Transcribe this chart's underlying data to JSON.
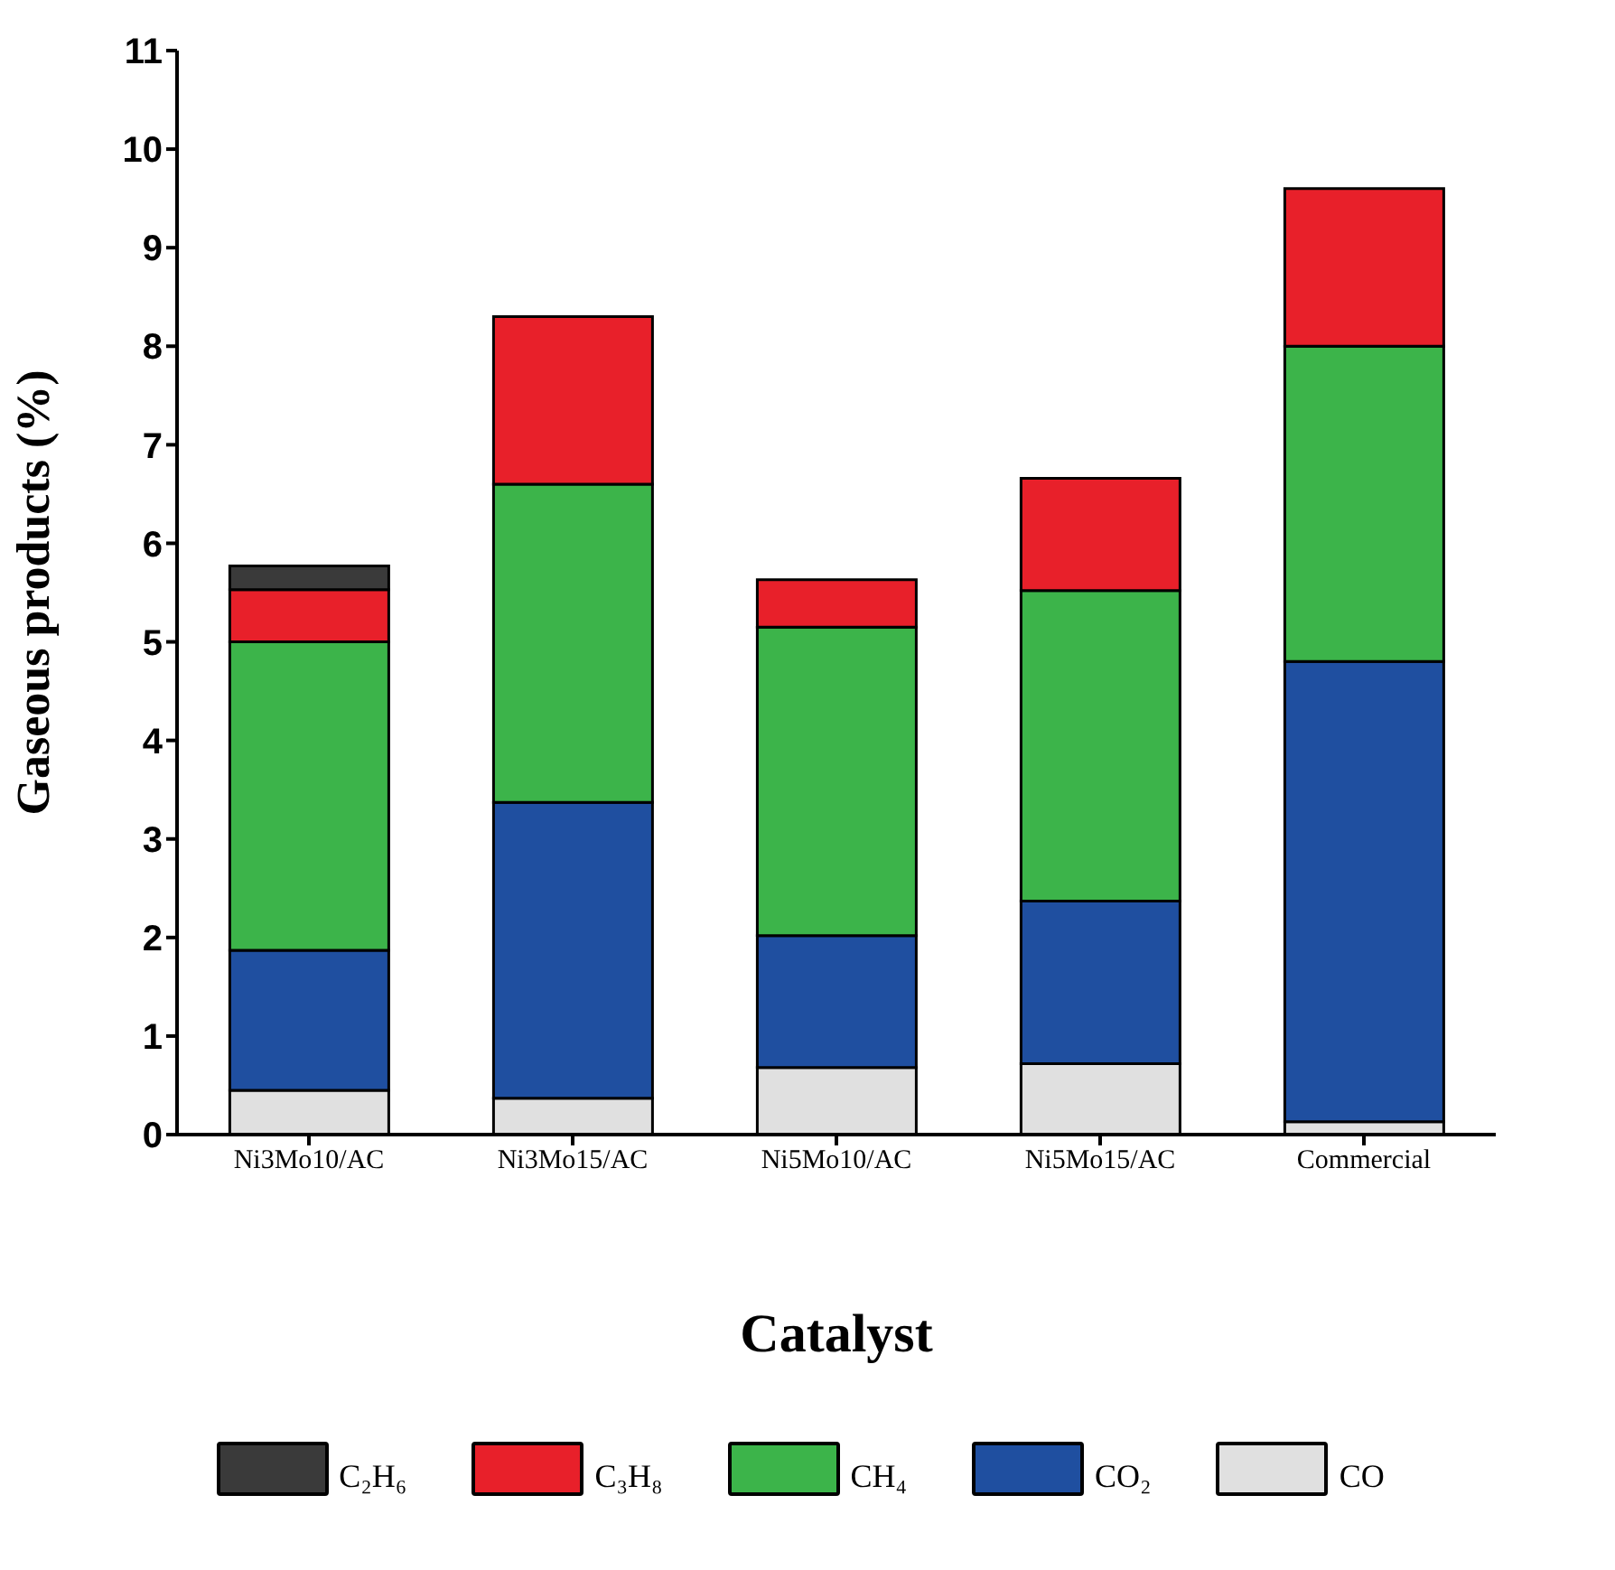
{
  "chart_data": {
    "type": "bar",
    "stacked": true,
    "xlabel": "Catalyst",
    "ylabel": "Gaseous products (%)",
    "categories": [
      "Ni3Mo10/AC",
      "Ni3Mo15/AC",
      "Ni5Mo10/AC",
      "Ni5Mo15/AC",
      "Commercial"
    ],
    "series": [
      {
        "name": "CO",
        "color": "#e0e0e0",
        "values": [
          0.45,
          0.37,
          0.68,
          0.72,
          0.13
        ]
      },
      {
        "name": "CO₂",
        "color": "#1f4fa0",
        "values": [
          1.42,
          3.0,
          1.34,
          1.65,
          4.67
        ]
      },
      {
        "name": "CH₄",
        "color": "#3cb44a",
        "values": [
          3.13,
          3.23,
          3.13,
          3.15,
          3.2
        ]
      },
      {
        "name": "C₃H₈",
        "color": "#e8202a",
        "values": [
          0.53,
          1.7,
          0.48,
          1.14,
          1.6
        ]
      },
      {
        "name": "C₂H₆",
        "color": "#3a3a3a",
        "values": [
          0.24,
          0,
          0,
          0,
          0
        ]
      }
    ],
    "ylim": [
      0,
      11
    ],
    "yticks": [
      0,
      1,
      2,
      3,
      4,
      5,
      6,
      7,
      8,
      9,
      10,
      11
    ],
    "grid": false,
    "legend": "bottom"
  }
}
